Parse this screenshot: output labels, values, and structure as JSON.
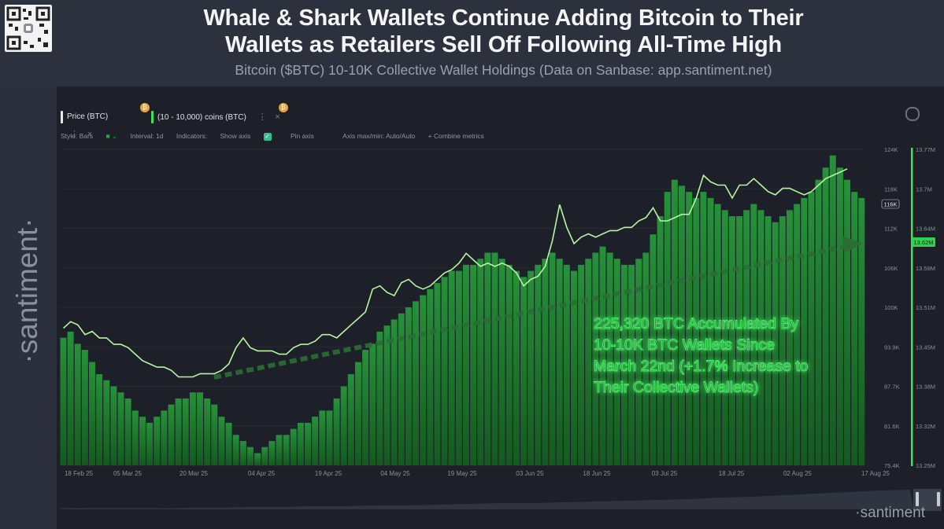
{
  "header": {
    "title_line1": "Whale & Shark Wallets Continue Adding Bitcoin to Their",
    "title_line2": "Wallets as Retailers Sell Off Following All-Time High",
    "subtitle": "Bitcoin ($BTC) 10-10K Collective Wallet Holdings (Data on Sanbase: app.santiment.net)"
  },
  "brand": {
    "vertical": "·santiment·",
    "corner": "·santiment"
  },
  "tabs": [
    {
      "label": "Price (BTC)",
      "color": "#f2f2f2"
    },
    {
      "label": "(10 - 10,000) coins (BTC)",
      "color": "#3ee35a"
    }
  ],
  "toolbar": {
    "style": "Style: Bars",
    "interval": "Interval: 1d",
    "indicators": "Indicators:",
    "show_axis": "Show axis",
    "pin_axis": "Pin axis",
    "axis_minmax": "Axis max/min: Auto/Auto",
    "combine": "+ Combine metrics"
  },
  "colors": {
    "bars": "#1f7a2c",
    "bars_bright": "#2aa63a",
    "price_line": "#b8f5a0",
    "trend": "#2a6e36",
    "accent": "#3ee35a"
  },
  "annotation": {
    "lines": [
      "225,320 BTC Accumulated By",
      "10-10K BTC Wallets Since",
      "March 22nd (+1.7% Increase to",
      "Their Collective Wallets)"
    ]
  },
  "chart_data": {
    "type": "bar",
    "x_labels": [
      "18 Feb 25",
      "05 Mar 25",
      "20 Mar 25",
      "04 Apr 25",
      "19 Apr 25",
      "04 May 25",
      "19 May 25",
      "03 Jun 25",
      "18 Jun 25",
      "03 Jul 25",
      "18 Jul 25",
      "02 Aug 25",
      "17 Aug 25"
    ],
    "y_left_ticks": [
      "124K",
      "118K",
      "112K",
      "106K",
      "100K",
      "93.9K",
      "87.7K",
      "81.6K",
      "75.4K"
    ],
    "y_right_ticks": [
      "13.77M",
      "13.7M",
      "13.64M",
      "13.58M",
      "13.51M",
      "13.45M",
      "13.38M",
      "13.32M",
      "13.25M"
    ],
    "price_badge": "116K",
    "holdings_badge": "13.62M",
    "series": [
      {
        "name": "Price (BTC)",
        "values": [
          96.5,
          97.5,
          97,
          95.5,
          96,
          95,
          95,
          94,
          94,
          93.5,
          92.5,
          91.5,
          91,
          90.5,
          90.5,
          90,
          89,
          89,
          89,
          89.5,
          89.5,
          89.5,
          90,
          91,
          93.5,
          95,
          93.5,
          93,
          93,
          93,
          92.5,
          92.5,
          93.5,
          94,
          94,
          94.5,
          95.5,
          95.5,
          95,
          96,
          97,
          98,
          99,
          102.5,
          103,
          102,
          101.5,
          103.5,
          104,
          103,
          102.5,
          103,
          104,
          105,
          105.5,
          106.5,
          108,
          107,
          106,
          106.5,
          106,
          106.5,
          106,
          105,
          103,
          104,
          104.5,
          106,
          110,
          115.5,
          112,
          109.5,
          110.5,
          111,
          110.5,
          111,
          111.5,
          111.5,
          112,
          112,
          113,
          113.5,
          115,
          113,
          113,
          113.5,
          114,
          114,
          116.5,
          120,
          119,
          118.5,
          118.5,
          116.5,
          118.5,
          118.5,
          119.5,
          118.5,
          117.5,
          117,
          118,
          118,
          117.5,
          117,
          117.5,
          118.5,
          119.5,
          120,
          120.5,
          121
        ],
        "y_range": [
          75.4,
          124
        ]
      },
      {
        "name": "(10 - 10,000) coins (BTC)",
        "values": [
          13.46,
          13.47,
          13.45,
          13.44,
          13.42,
          13.4,
          13.39,
          13.38,
          13.37,
          13.36,
          13.34,
          13.33,
          13.32,
          13.33,
          13.34,
          13.35,
          13.36,
          13.36,
          13.37,
          13.37,
          13.36,
          13.35,
          13.33,
          13.32,
          13.3,
          13.29,
          13.28,
          13.27,
          13.28,
          13.29,
          13.3,
          13.3,
          13.31,
          13.32,
          13.32,
          13.33,
          13.34,
          13.34,
          13.36,
          13.38,
          13.4,
          13.42,
          13.44,
          13.45,
          13.47,
          13.48,
          13.49,
          13.5,
          13.51,
          13.52,
          13.53,
          13.54,
          13.55,
          13.56,
          13.57,
          13.57,
          13.58,
          13.58,
          13.59,
          13.6,
          13.6,
          13.59,
          13.58,
          13.57,
          13.56,
          13.57,
          13.58,
          13.59,
          13.6,
          13.59,
          13.58,
          13.57,
          13.58,
          13.59,
          13.6,
          13.61,
          13.6,
          13.59,
          13.58,
          13.58,
          13.59,
          13.6,
          13.63,
          13.66,
          13.7,
          13.72,
          13.71,
          13.7,
          13.69,
          13.7,
          13.69,
          13.68,
          13.67,
          13.66,
          13.66,
          13.67,
          13.68,
          13.67,
          13.66,
          13.65,
          13.66,
          13.67,
          13.68,
          13.69,
          13.7,
          13.72,
          13.74,
          13.76,
          13.74,
          13.72,
          13.7,
          13.69
        ],
        "y_range": [
          13.25,
          13.77
        ]
      }
    ]
  }
}
